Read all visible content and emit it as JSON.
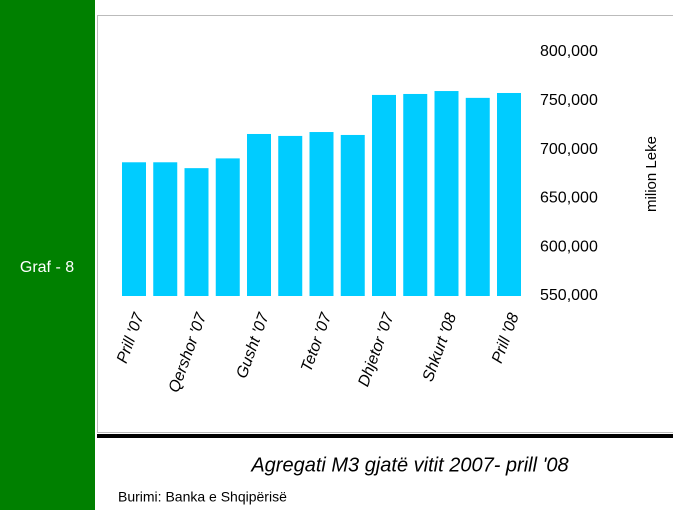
{
  "side_label": "Graf - 8",
  "chart_data": {
    "type": "bar",
    "title": "Agregati M3 gjatë vitit 2007- prill '08",
    "source": "Burimi: Banka e Shqipërisë",
    "y_label": "milion Leke",
    "categories": [
      "Prill '07",
      null,
      "Qershor '07",
      null,
      "Gusht '07",
      null,
      "Tetor '07",
      null,
      "Dhjetor '07",
      null,
      "Shkurt '08",
      null,
      "Prill '08"
    ],
    "values": [
      687000,
      687000,
      681000,
      691000,
      716000,
      714000,
      718000,
      715000,
      756000,
      757000,
      760000,
      753000,
      758000
    ],
    "color": "#00ccff",
    "ylim": [
      550000,
      800000
    ],
    "yticks": [
      {
        "value": 550000,
        "label": "550,000"
      },
      {
        "value": 600000,
        "label": "600,000"
      },
      {
        "value": 650000,
        "label": "650,000"
      },
      {
        "value": 700000,
        "label": "700,000"
      },
      {
        "value": 750000,
        "label": "750,000"
      },
      {
        "value": 800000,
        "label": "800,000"
      }
    ],
    "grid": false
  }
}
